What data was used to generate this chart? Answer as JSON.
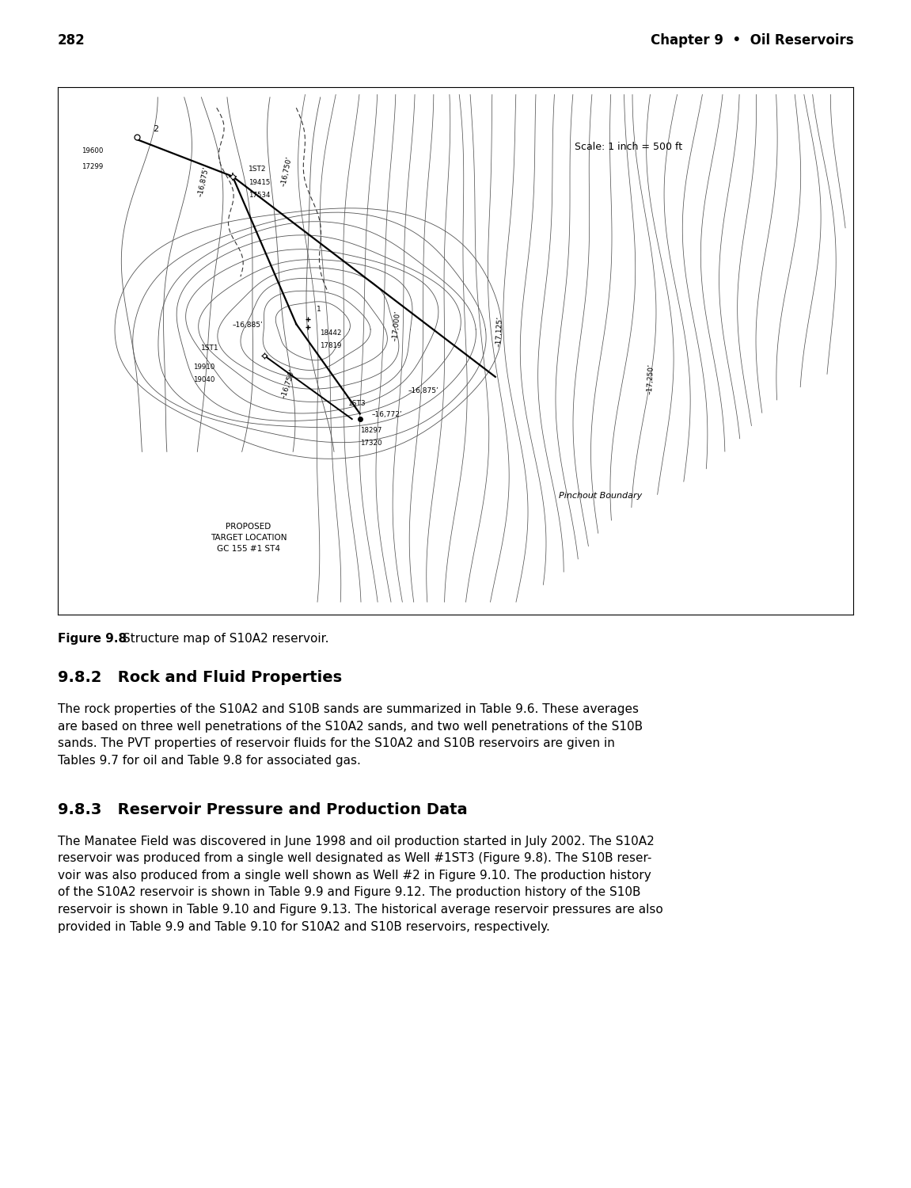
{
  "page_number": "282",
  "header_right": "Chapter 9  •  Oil Reservoirs",
  "figure_caption_bold": "Figure 9.8",
  "figure_caption_normal": "    Structure map of S10A2 reservoir.",
  "scale_text": "Scale: 1 inch = 500 ft",
  "pinchout_text": "Pinchout Boundary",
  "proposed_text": "PROPOSED\nTARGET LOCATION\nGC 155 #1 ST4",
  "section_282_title": "9.8.2   Rock and Fluid Properties",
  "section_282_body": "The rock properties of the S10A2 and S10B sands are summarized in Table 9.6. These averages\nare based on three well penetrations of the S10A2 sands, and two well penetrations of the S10B\nsands. The PVT properties of reservoir fluids for the S10A2 and S10B reservoirs are given in\nTables 9.7 for oil and Table 9.8 for associated gas.",
  "section_283_title": "9.8.3   Reservoir Pressure and Production Data",
  "section_283_body": "The Manatee Field was discovered in June 1998 and oil production started in July 2002. The S10A2\nreservoir was produced from a single well designated as Well #1ST3 (Figure 9.8). The S10B reser-\nvoir was also produced from a single well shown as Well #2 in Figure 9.10. The production history\nof the S10A2 reservoir is shown in Table 9.9 and Figure 9.12. The production history of the S10B\nreservoir is shown in Table 9.10 and Figure 9.13. The historical average reservoir pressures are also\nprovided in Table 9.9 and Table 9.10 for S10A2 and S10B reservoirs, respectively.",
  "background_color": "#ffffff",
  "text_color": "#000000"
}
